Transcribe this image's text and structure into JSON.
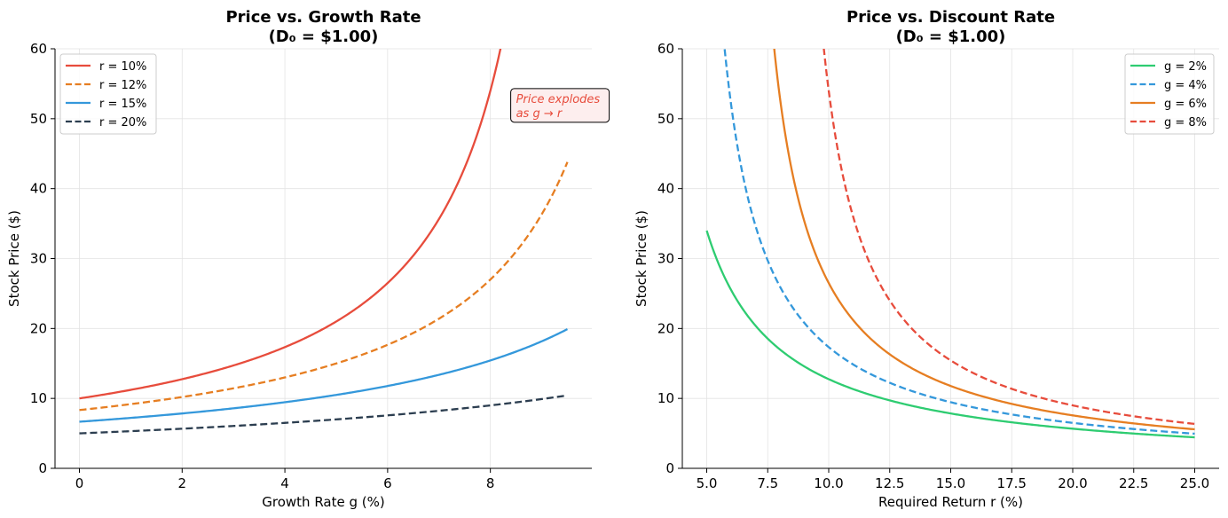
{
  "chart_data": [
    {
      "type": "line",
      "title": "Price vs. Growth Rate",
      "subtitle": "(D₀ = $1.00)",
      "xlabel": "Growth Rate g (%)",
      "ylabel": "Stock Price ($)",
      "xlim": [
        -0.475,
        9.975
      ],
      "ylim": [
        0,
        60
      ],
      "xticks": [
        0,
        2,
        4,
        6,
        8
      ],
      "xtick_labels": [
        "0",
        "2",
        "4",
        "6",
        "8"
      ],
      "yticks": [
        0,
        10,
        20,
        30,
        40,
        50,
        60
      ],
      "ytick_labels": [
        "0",
        "10",
        "20",
        "30",
        "40",
        "50",
        "60"
      ],
      "grid": true,
      "legend_position": "top-left",
      "formula": "price = 100 * (1 + g/100) / (r - g), g in percent",
      "series": [
        {
          "name": "r = 10%",
          "r": 10,
          "g_range": [
            0,
            9.5
          ],
          "color": "#e74c3c",
          "dash": "solid",
          "samples": [
            [
              0,
              10.0
            ],
            [
              2,
              12.75
            ],
            [
              4,
              17.33
            ],
            [
              6,
              26.5
            ],
            [
              8,
              54.0
            ]
          ]
        },
        {
          "name": "r = 12%",
          "r": 12,
          "g_range": [
            0,
            9.5
          ],
          "color": "#e67e22",
          "dash": "dashed",
          "samples": [
            [
              0,
              8.33
            ],
            [
              2,
              10.2
            ],
            [
              4,
              13.0
            ],
            [
              6,
              17.67
            ],
            [
              8,
              27.0
            ],
            [
              9.5,
              43.8
            ]
          ]
        },
        {
          "name": "r = 15%",
          "r": 15,
          "g_range": [
            0,
            9.5
          ],
          "color": "#3498db",
          "dash": "solid",
          "samples": [
            [
              0,
              6.67
            ],
            [
              2,
              7.85
            ],
            [
              4,
              9.45
            ],
            [
              6,
              11.78
            ],
            [
              8,
              15.43
            ],
            [
              9.5,
              19.91
            ]
          ]
        },
        {
          "name": "r = 20%",
          "r": 20,
          "g_range": [
            0,
            9.5
          ],
          "color": "#2c3e50",
          "dash": "dashed",
          "samples": [
            [
              0,
              5.0
            ],
            [
              2,
              5.67
            ],
            [
              4,
              6.5
            ],
            [
              6,
              7.57
            ],
            [
              8,
              9.0
            ],
            [
              9.5,
              10.43
            ]
          ]
        }
      ],
      "annotation": {
        "line1": "Price explodes",
        "line2": "as g → r",
        "color": "#e74c3c",
        "anchor": [
          8.5,
          50
        ]
      }
    },
    {
      "type": "line",
      "title": "Price vs. Discount Rate",
      "subtitle": "(D₀ = $1.00)",
      "xlabel": "Required Return r (%)",
      "ylabel": "Stock Price ($)",
      "xlim": [
        4.0,
        26.0
      ],
      "ylim": [
        0,
        60
      ],
      "xticks": [
        5,
        7.5,
        10,
        12.5,
        15,
        17.5,
        20,
        22.5,
        25
      ],
      "xtick_labels": [
        "5.0",
        "7.5",
        "10.0",
        "12.5",
        "15.0",
        "17.5",
        "20.0",
        "22.5",
        "25.0"
      ],
      "yticks": [
        0,
        10,
        20,
        30,
        40,
        50,
        60
      ],
      "ytick_labels": [
        "0",
        "10",
        "20",
        "30",
        "40",
        "50",
        "60"
      ],
      "grid": true,
      "legend_position": "top-right",
      "formula": "price = 100 * (1 + g/100) / (r - g), r in percent",
      "series": [
        {
          "name": "g = 2%",
          "g": 2,
          "r_range": [
            5,
            25
          ],
          "color": "#2ecc71",
          "dash": "solid",
          "samples": [
            [
              5,
              34.0
            ],
            [
              10,
              12.75
            ],
            [
              15,
              7.85
            ],
            [
              20,
              5.67
            ],
            [
              25,
              4.43
            ]
          ]
        },
        {
          "name": "g = 4%",
          "g": 4,
          "r_range": [
            5,
            25
          ],
          "color": "#3498db",
          "dash": "dashed",
          "samples": [
            [
              6,
              52.0
            ],
            [
              10,
              17.33
            ],
            [
              15,
              9.45
            ],
            [
              20,
              6.5
            ],
            [
              25,
              4.95
            ]
          ]
        },
        {
          "name": "g = 6%",
          "g": 6,
          "r_range": [
            5,
            25
          ],
          "color": "#e67e22",
          "dash": "solid",
          "samples": [
            [
              8,
              53.0
            ],
            [
              10,
              26.5
            ],
            [
              15,
              11.78
            ],
            [
              20,
              7.57
            ],
            [
              25,
              5.58
            ]
          ]
        },
        {
          "name": "g = 8%",
          "g": 8,
          "r_range": [
            5,
            25
          ],
          "color": "#e74c3c",
          "dash": "dashed",
          "samples": [
            [
              10,
              54.0
            ],
            [
              15,
              15.43
            ],
            [
              20,
              9.0
            ],
            [
              25,
              6.35
            ]
          ]
        }
      ]
    }
  ]
}
